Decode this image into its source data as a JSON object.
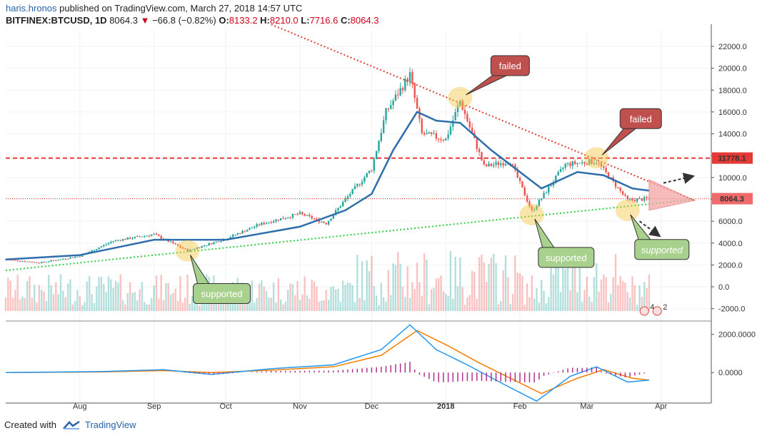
{
  "header": {
    "author": "haris.hronos",
    "published": "published on TradingView.com, March 27, 2018 14:57 UTC"
  },
  "symbol": {
    "ticker": "BITFINEX:BTCUSD, 1D",
    "last": "8064.3",
    "change": "−66.8 (−0.82%)",
    "open_label": "O:",
    "open": "8133.2",
    "high_label": "H:",
    "high": "8210.0",
    "low_label": "L:",
    "low": "7716.6",
    "close_label": "C:",
    "close": "8064.3"
  },
  "colors": {
    "up": "#26a69a",
    "down": "#ef5350",
    "ma": "#2f6eac",
    "resistance_dotted": "#e53935",
    "support_dotted": "#2ecc40",
    "callout_red": "#c0504d",
    "callout_green": "#a9d18e",
    "highlight": "#f4c542"
  },
  "chart_data": {
    "type": "candlestick",
    "x_labels": [
      "Aug",
      "Sep",
      "Oct",
      "Nov",
      "Dec",
      "2018",
      "Feb",
      "Mar",
      "Apr"
    ],
    "x_label_dates": [
      "2017-08-01",
      "2017-09-01",
      "2017-10-01",
      "2017-11-01",
      "2017-12-01",
      "2018-01-01",
      "2018-02-01",
      "2018-03-01",
      "2018-04-01"
    ],
    "price_ticks": [
      "22000.0",
      "20000.0",
      "18000.0",
      "16000.0",
      "14000.0",
      "12000.0",
      "10000.0",
      "8000.0",
      "6000.0",
      "4000.0",
      "2000.0",
      "0.0",
      "-2000.0"
    ],
    "price_tick_values": [
      22000,
      20000,
      18000,
      16000,
      14000,
      12000,
      10000,
      8000,
      6000,
      4000,
      2000,
      0,
      -2000
    ],
    "price_range": [
      -3000,
      23500
    ],
    "price_series_approx": [
      [
        "2017-07-01",
        2500
      ],
      [
        "2017-07-15",
        2200
      ],
      [
        "2017-08-01",
        2800
      ],
      [
        "2017-08-15",
        4200
      ],
      [
        "2017-09-01",
        4800
      ],
      [
        "2017-09-15",
        3300
      ],
      [
        "2017-10-01",
        4400
      ],
      [
        "2017-10-15",
        5700
      ],
      [
        "2017-11-01",
        6700
      ],
      [
        "2017-11-12",
        5800
      ],
      [
        "2017-11-20",
        8000
      ],
      [
        "2017-12-01",
        10800
      ],
      [
        "2017-12-07",
        16000
      ],
      [
        "2017-12-17",
        19400
      ],
      [
        "2017-12-22",
        14000
      ],
      [
        "2018-01-01",
        13500
      ],
      [
        "2018-01-07",
        17000
      ],
      [
        "2018-01-17",
        11000
      ],
      [
        "2018-01-28",
        11500
      ],
      [
        "2018-02-06",
        6900
      ],
      [
        "2018-02-20",
        11200
      ],
      [
        "2018-03-05",
        11500
      ],
      [
        "2018-03-18",
        7900
      ],
      [
        "2018-03-27",
        8064
      ]
    ],
    "moving_average_approx": [
      [
        "2017-07-01",
        2500
      ],
      [
        "2017-08-01",
        2900
      ],
      [
        "2017-09-01",
        4300
      ],
      [
        "2017-10-01",
        4300
      ],
      [
        "2017-11-01",
        5500
      ],
      [
        "2017-11-20",
        7000
      ],
      [
        "2017-12-01",
        8500
      ],
      [
        "2017-12-10",
        12500
      ],
      [
        "2017-12-20",
        16000
      ],
      [
        "2017-12-28",
        15200
      ],
      [
        "2018-01-07",
        15000
      ],
      [
        "2018-01-20",
        12500
      ],
      [
        "2018-02-01",
        10500
      ],
      [
        "2018-02-10",
        9000
      ],
      [
        "2018-02-25",
        10500
      ],
      [
        "2018-03-08",
        10200
      ],
      [
        "2018-03-20",
        9000
      ],
      [
        "2018-03-27",
        8800
      ]
    ],
    "horizontal_lines": [
      {
        "label": "11778.1",
        "value": 11778.1,
        "style": "dashed",
        "color": "#e53935"
      },
      {
        "label": "8064.3",
        "value": 8064.3,
        "style": "dotted",
        "color": "#e53935"
      }
    ],
    "trendlines": [
      {
        "kind": "resistance",
        "from": [
          "2017-10-20",
          24000
        ],
        "to": [
          "2018-04-15",
          7900
        ]
      },
      {
        "kind": "support",
        "from": [
          "2017-07-01",
          1500
        ],
        "to": [
          "2018-04-15",
          8000
        ]
      }
    ],
    "annotations": [
      {
        "text": "failed",
        "kind": "red",
        "target_date": "2018-01-07",
        "target_value": 17300
      },
      {
        "text": "failed",
        "kind": "red",
        "target_date": "2018-03-05",
        "target_value": 11800
      },
      {
        "text": "supported",
        "kind": "green",
        "target_date": "2017-09-15",
        "target_value": 3300
      },
      {
        "text": "supported",
        "kind": "green",
        "target_date": "2018-02-06",
        "target_value": 6600
      },
      {
        "text": "supported",
        "kind": "green",
        "target_date": "2018-03-18",
        "target_value": 7000
      }
    ],
    "volume_markers": [
      "4",
      "2"
    ],
    "macd": {
      "ticks": [
        "2000.0000",
        "0.0000"
      ],
      "tick_values": [
        2000,
        0
      ],
      "range": [
        -1600,
        2700
      ]
    }
  },
  "footer": {
    "created_with": "Created with",
    "brand": "TradingView"
  }
}
